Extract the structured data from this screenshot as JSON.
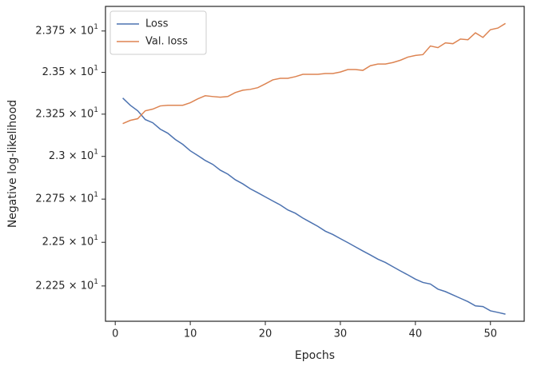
{
  "chart_data": {
    "type": "line",
    "xlabel": "Epochs",
    "ylabel": "Negative log-likelihood",
    "x": [
      1,
      2,
      3,
      4,
      5,
      6,
      7,
      8,
      9,
      10,
      11,
      12,
      13,
      14,
      15,
      16,
      17,
      18,
      19,
      20,
      21,
      22,
      23,
      24,
      25,
      26,
      27,
      28,
      29,
      30,
      31,
      32,
      33,
      34,
      35,
      36,
      37,
      38,
      39,
      40,
      41,
      42,
      43,
      44,
      45,
      46,
      47,
      48,
      49,
      50,
      51,
      52
    ],
    "series": [
      {
        "name": "Loss",
        "color": "#4c72b0",
        "values": [
          23.346,
          23.303,
          23.27,
          23.218,
          23.199,
          23.161,
          23.137,
          23.1,
          23.071,
          23.033,
          23.005,
          22.976,
          22.953,
          22.919,
          22.896,
          22.863,
          22.839,
          22.81,
          22.787,
          22.763,
          22.739,
          22.716,
          22.687,
          22.668,
          22.64,
          22.616,
          22.592,
          22.564,
          22.545,
          22.521,
          22.498,
          22.474,
          22.45,
          22.427,
          22.403,
          22.384,
          22.36,
          22.336,
          22.313,
          22.289,
          22.27,
          22.261,
          22.232,
          22.218,
          22.199,
          22.18,
          22.161,
          22.137,
          22.133,
          22.109,
          22.1,
          22.09
        ]
      },
      {
        "name": "Val. loss",
        "color": "#dd8452",
        "values": [
          23.194,
          23.213,
          23.223,
          23.27,
          23.28,
          23.299,
          23.303,
          23.303,
          23.303,
          23.318,
          23.341,
          23.36,
          23.355,
          23.351,
          23.355,
          23.379,
          23.393,
          23.398,
          23.408,
          23.431,
          23.455,
          23.464,
          23.464,
          23.474,
          23.488,
          23.488,
          23.488,
          23.493,
          23.493,
          23.502,
          23.517,
          23.517,
          23.512,
          23.54,
          23.55,
          23.55,
          23.559,
          23.573,
          23.592,
          23.602,
          23.607,
          23.659,
          23.649,
          23.678,
          23.673,
          23.701,
          23.697,
          23.739,
          23.711,
          23.758,
          23.768,
          23.796
        ]
      }
    ],
    "xlim": [
      -1.3,
      54.5
    ],
    "xticks": [
      0,
      10,
      20,
      30,
      40,
      50
    ],
    "ylim": [
      22.05,
      23.9
    ],
    "yscale": "log",
    "yticks": [
      {
        "value": 22.25,
        "label": "2.225 × 10^1"
      },
      {
        "value": 22.5,
        "label": "2.25 × 10^1"
      },
      {
        "value": 22.75,
        "label": "2.275 × 10^1"
      },
      {
        "value": 23,
        "label": "2.3 × 10^1"
      },
      {
        "value": 23.25,
        "label": "2.325 × 10^1"
      },
      {
        "value": 23.5,
        "label": "2.35 × 10^1"
      },
      {
        "value": 23.75,
        "label": "2.375 × 10^1"
      }
    ],
    "legend": "upper left"
  }
}
